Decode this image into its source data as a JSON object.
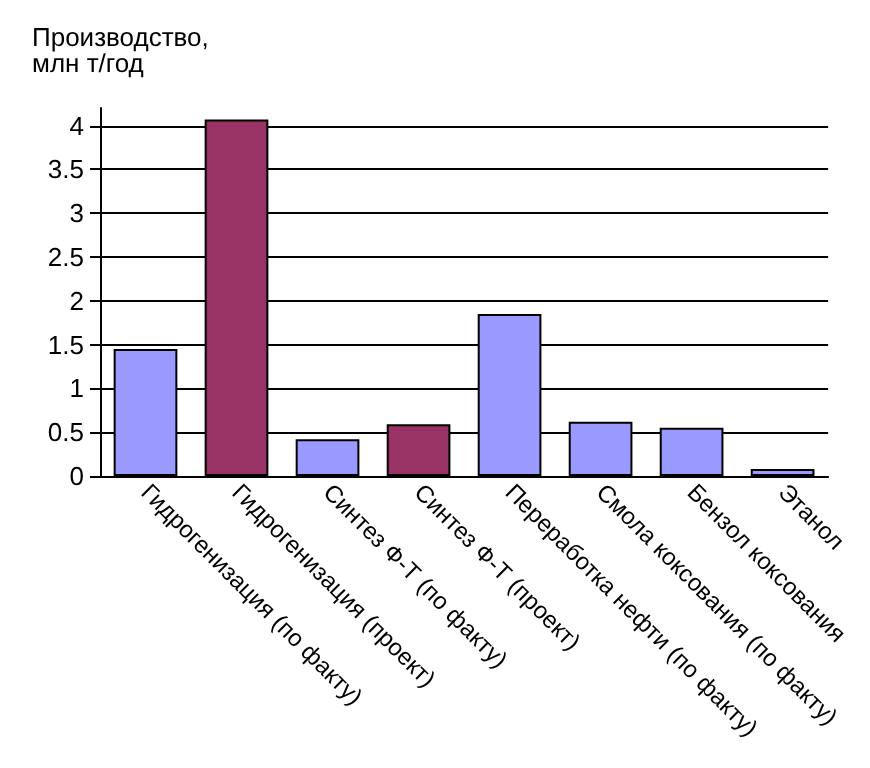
{
  "chart_data": {
    "type": "bar",
    "ylabel": "Производство,\nмлн т/год",
    "categories": [
      "Гидрогенизация (по факту)",
      "Гидрогенизация (проект)",
      "Синтез Ф-Т (по факту)",
      "Синтез Ф-Т (проект)",
      "Переработка нефти (по факту)",
      "Смола коксования (по факту)",
      "Бензол коксования",
      "Этанол"
    ],
    "values": [
      1.45,
      4.07,
      0.42,
      0.59,
      1.85,
      0.62,
      0.55,
      0.08
    ],
    "colors": [
      "#9999ff",
      "#993366",
      "#9999ff",
      "#993366",
      "#9999ff",
      "#9999ff",
      "#9999ff",
      "#9999ff"
    ],
    "ylim": [
      0,
      4.2
    ],
    "yticks": [
      0,
      0.5,
      1,
      1.5,
      2,
      2.5,
      3,
      3.5,
      4
    ],
    "grid": "y"
  }
}
